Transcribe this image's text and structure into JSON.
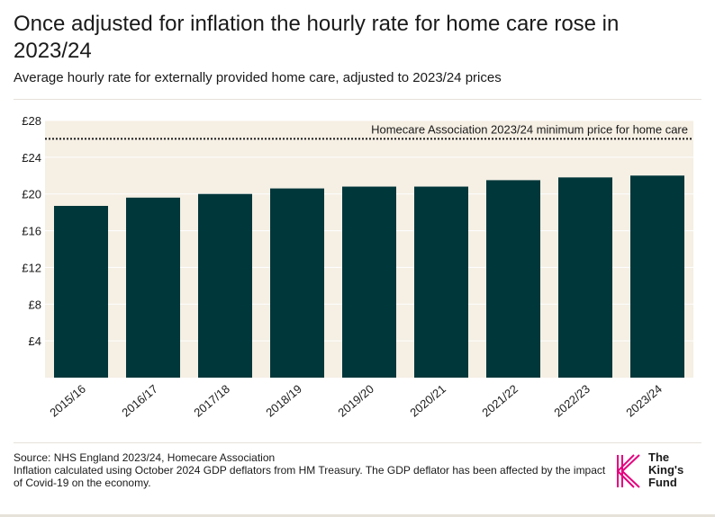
{
  "header": {
    "title": "Once adjusted for inflation the hourly rate for home care rose in 2023/24",
    "subtitle": "Average hourly rate for externally provided home care, adjusted to 2023/24 prices"
  },
  "chart_data": {
    "type": "bar",
    "categories": [
      "2015/16",
      "2016/17",
      "2017/18",
      "2018/19",
      "2019/20",
      "2020/21",
      "2021/22",
      "2022/23",
      "2023/24"
    ],
    "values": [
      18.7,
      19.6,
      20.0,
      20.6,
      20.8,
      20.8,
      21.5,
      21.8,
      22.0
    ],
    "ylim": [
      0,
      28
    ],
    "yticks": [
      4,
      8,
      12,
      16,
      20,
      24,
      28
    ],
    "ytick_labels": [
      "£4",
      "£8",
      "£12",
      "£16",
      "£20",
      "£24",
      "£28"
    ],
    "reference_line": {
      "value": 26,
      "label": "Homecare Association 2023/24 minimum price for home care"
    },
    "colors": {
      "bar": "#00373a",
      "background": "#f5efe4",
      "gridline": "#ffffff",
      "reference": "#1a1a1a"
    }
  },
  "footer": {
    "source": "Source: NHS England 2023/24, Homecare Association",
    "note": "Inflation calculated using October 2024 GDP deflators from HM Treasury. The GDP deflator has been affected by the impact of Covid-19 on the economy."
  },
  "logo": {
    "line1": "The",
    "line2": "King's",
    "line3": "Fund",
    "color": "#e5007e"
  }
}
